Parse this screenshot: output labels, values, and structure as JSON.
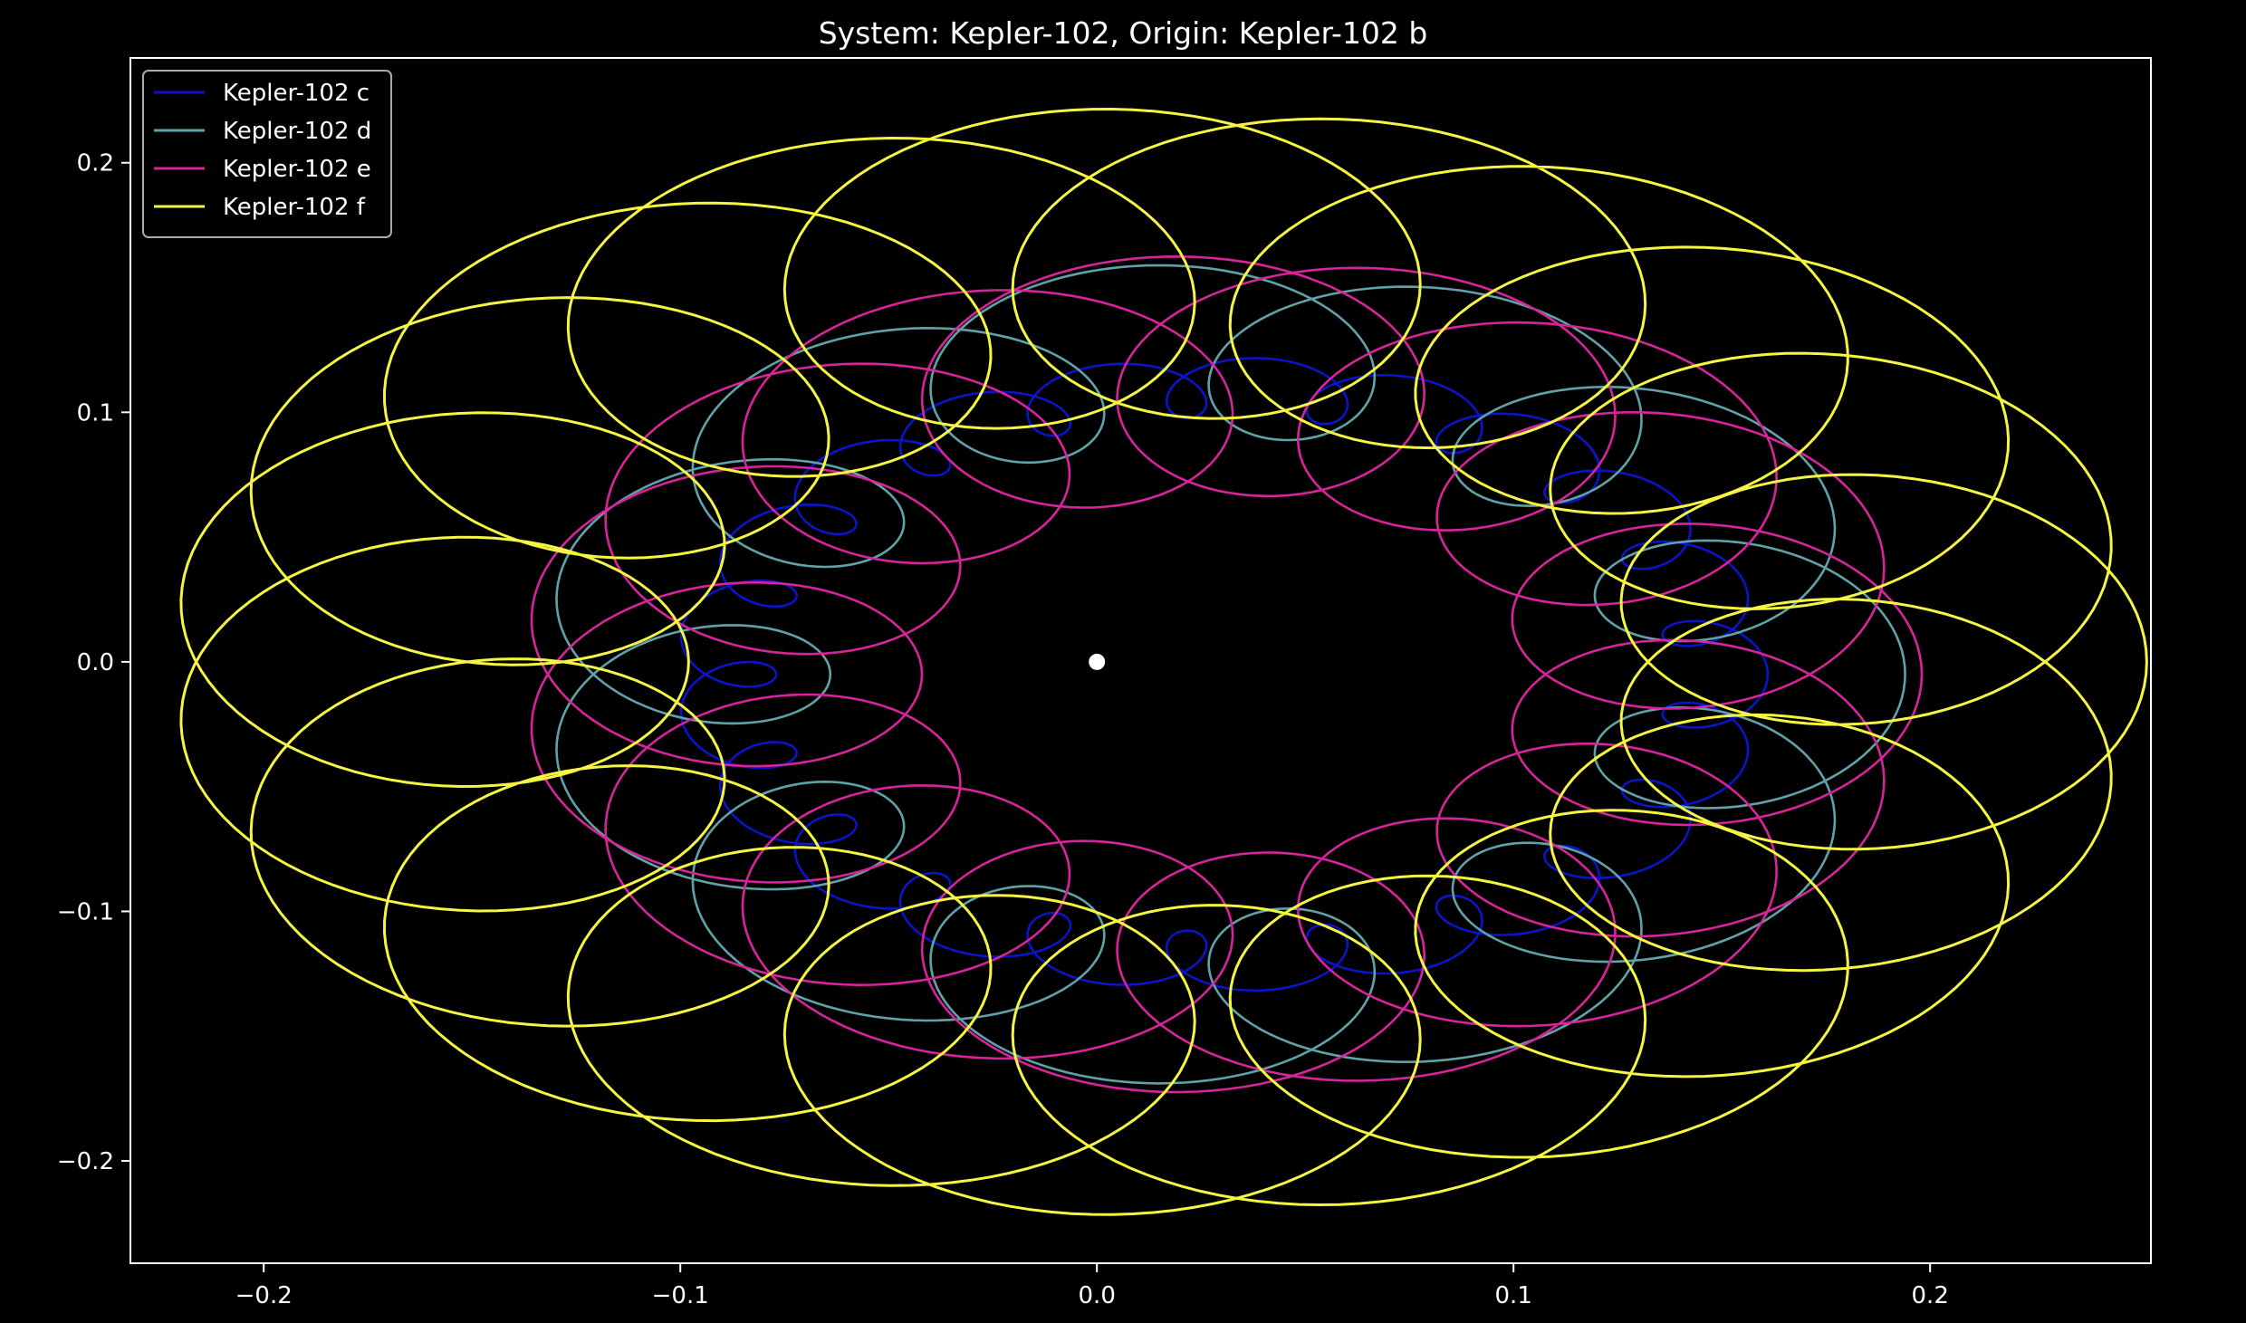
{
  "chart_data": {
    "type": "line",
    "title": "System: Kepler-102, Origin: Kepler-102 b",
    "xlabel": "",
    "ylabel": "",
    "xlim": [
      -0.232,
      0.253
    ],
    "ylim": [
      -0.241,
      0.242
    ],
    "x_ticks": [
      -0.2,
      -0.1,
      0.0,
      0.1,
      0.2
    ],
    "x_tick_labels": [
      "−0.2",
      "−0.1",
      "0.0",
      "0.1",
      "0.2"
    ],
    "y_ticks": [
      0.2,
      0.1,
      0.0,
      -0.1,
      -0.2
    ],
    "y_tick_labels": [
      "0.2",
      "0.1",
      "0.0",
      "−0.1",
      "−0.2"
    ],
    "grid": false,
    "legend_position": "top-left",
    "background": "#000000",
    "origin_marker": {
      "x": 0.0,
      "y": 0.0,
      "color": "#ffffff"
    },
    "series": [
      {
        "name": "Kepler-102 c",
        "color": "#0a14c8",
        "outer_center": [
          0.03,
          -0.005
        ],
        "outer_rx": 0.119,
        "outer_ry": 0.115,
        "loop_r": 0.012,
        "laps": 8.6,
        "loops_per_lap": 22,
        "width": 2.6
      },
      {
        "name": "Kepler-102 d",
        "color": "#5fa3a8",
        "outer_center": [
          0.03,
          -0.005
        ],
        "outer_rx": 0.129,
        "outer_ry": 0.13,
        "loop_r": 0.035,
        "laps": 3.0,
        "loops_per_lap": 12,
        "width": 2.6
      },
      {
        "name": "Kepler-102 e",
        "color": "#d7249a",
        "outer_center": [
          0.03,
          -0.005
        ],
        "outer_rx": 0.12,
        "outer_ry": 0.12,
        "loop_r": 0.048,
        "laps": 1.6,
        "loops_per_lap": 16,
        "width": 2.6
      },
      {
        "name": "Kepler-102 f",
        "color": "#f5f542",
        "outer_center": [
          0.015,
          0.0
        ],
        "outer_rx": 0.175,
        "outer_ry": 0.16,
        "loop_r": 0.062,
        "laps": 1.0,
        "loops_per_lap": 20,
        "width": 3.0
      }
    ]
  }
}
